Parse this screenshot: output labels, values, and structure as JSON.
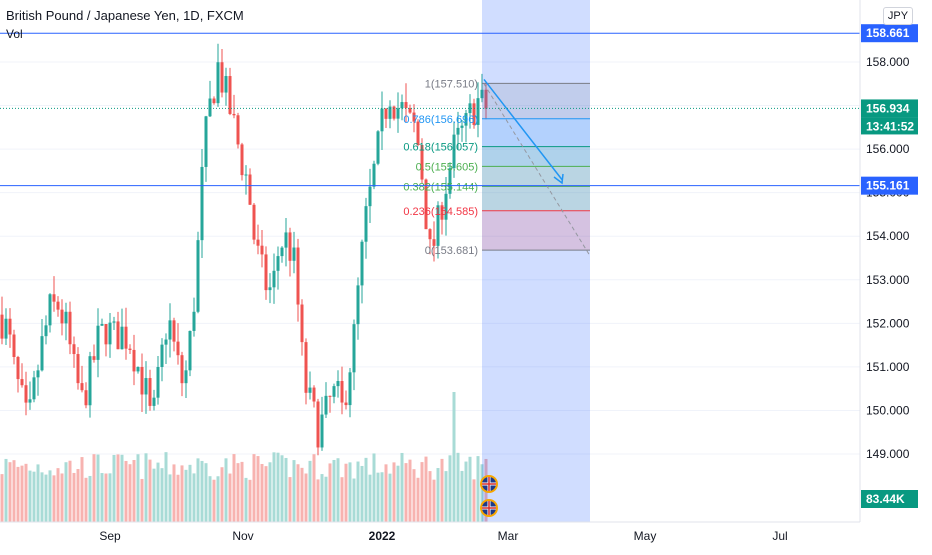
{
  "header": {
    "title": "British Pound / Japanese Yen, 1D, FXCM",
    "volume_label": "Vol",
    "currency": "JPY"
  },
  "chart_data": {
    "type": "candlestick",
    "symbol": "British Pound / Japanese Yen",
    "interval": "1D",
    "exchange": "FXCM",
    "y_axis": {
      "ticks": [
        "158.000",
        "157.000",
        "156.000",
        "155.000",
        "154.000",
        "153.000",
        "152.000",
        "151.000",
        "150.000",
        "149.000"
      ],
      "range": [
        148.2,
        159.8
      ]
    },
    "x_axis": {
      "labels": [
        "Sep",
        "Nov",
        "2022",
        "Mar",
        "May",
        "Jul"
      ]
    },
    "price_markers": [
      {
        "value": "158.661",
        "color": "#2962ff"
      },
      {
        "value": "156.934",
        "color": "#089981"
      },
      {
        "value": "13:41:52",
        "color": "#089981"
      },
      {
        "value": "155.161",
        "color": "#2962ff"
      },
      {
        "value": "83.44K",
        "color": "#089981"
      }
    ],
    "horizontal_lines": [
      {
        "price": 158.661,
        "style": "solid",
        "color": "#2962ff"
      },
      {
        "price": 155.161,
        "style": "solid",
        "color": "#2962ff"
      },
      {
        "price": 156.934,
        "style": "dotted",
        "color": "#089981"
      }
    ],
    "fibonacci": [
      {
        "label": "1(157.510)",
        "level": 157.51,
        "color": "#787b86"
      },
      {
        "label": "0.786(156.696)",
        "level": 156.696,
        "color": "#2196f3"
      },
      {
        "label": "0.618(156.057)",
        "level": 156.057,
        "color": "#089981"
      },
      {
        "label": "0.5(155.605)",
        "level": 155.605,
        "color": "#4caf50"
      },
      {
        "label": "0.382(155.144)",
        "level": 155.144,
        "color": "#4caf50"
      },
      {
        "label": "0.236(154.585)",
        "level": 154.585,
        "color": "#f23645"
      },
      {
        "label": "0(153.681)",
        "level": 153.681,
        "color": "#787b86"
      }
    ],
    "candles": [],
    "colors": {
      "up": "#26a69a",
      "down": "#ef5350",
      "vol_up": "#a8dbd6",
      "vol_down": "#f7b3b0",
      "accent": "#2962ff"
    }
  }
}
